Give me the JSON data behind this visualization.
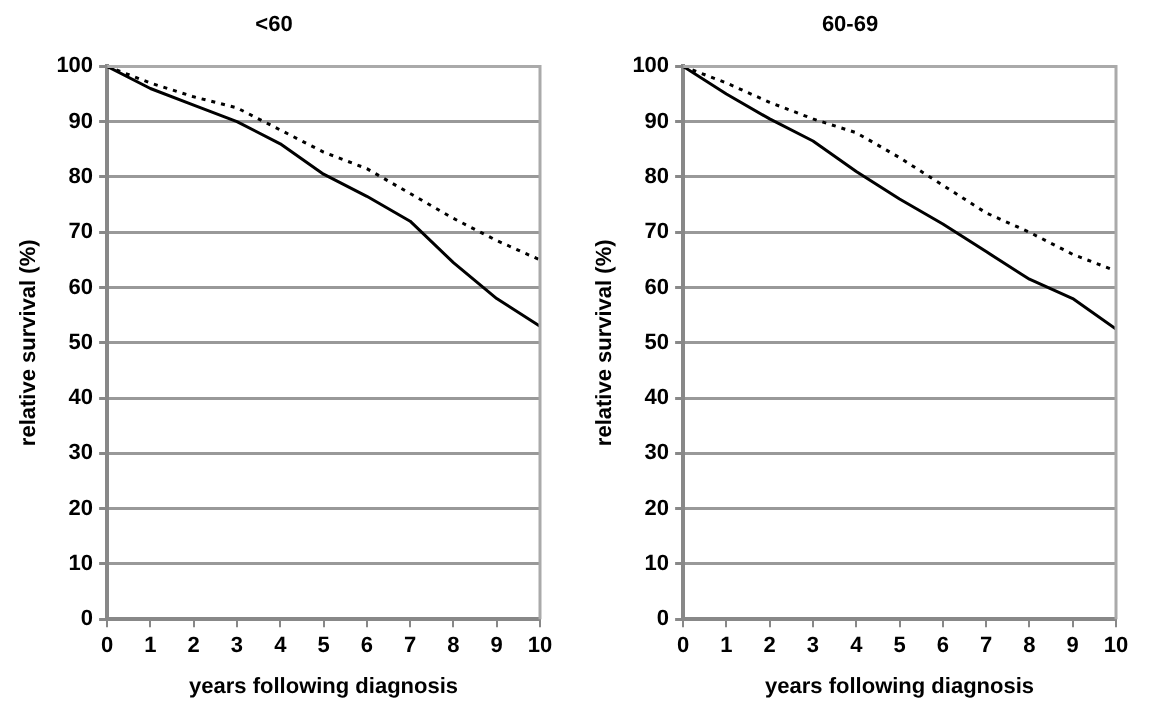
{
  "chart_data": [
    {
      "type": "line",
      "title": "<60",
      "xlabel": "years following diagnosis",
      "ylabel": "relative survival (%)",
      "x": [
        0,
        1,
        2,
        3,
        4,
        5,
        6,
        7,
        8,
        9,
        10
      ],
      "xlim": [
        0,
        10
      ],
      "xticks": [
        0,
        1,
        2,
        3,
        4,
        5,
        6,
        7,
        8,
        9,
        10
      ],
      "ylim": [
        0,
        100
      ],
      "yticks": [
        0,
        10,
        20,
        30,
        40,
        50,
        60,
        70,
        80,
        90,
        100
      ],
      "grid": "y",
      "legend": false,
      "marker": "none",
      "series": [
        {
          "color": "#000000",
          "line_style": "solid",
          "values": [
            100,
            96,
            93,
            90,
            86,
            80.5,
            76.5,
            72,
            64.5,
            58,
            53
          ]
        },
        {
          "color": "#000000",
          "line_style": "dotted",
          "values": [
            100,
            97,
            94.5,
            92.5,
            88.5,
            84.5,
            81.5,
            77,
            72.5,
            68.5,
            65
          ]
        }
      ]
    },
    {
      "type": "line",
      "title": "60-69",
      "xlabel": "years following diagnosis",
      "ylabel": "relative survival (%)",
      "x": [
        0,
        1,
        2,
        3,
        4,
        5,
        6,
        7,
        8,
        9,
        10
      ],
      "xlim": [
        0,
        10
      ],
      "xticks": [
        0,
        1,
        2,
        3,
        4,
        5,
        6,
        7,
        8,
        9,
        10
      ],
      "ylim": [
        0,
        100
      ],
      "yticks": [
        0,
        10,
        20,
        30,
        40,
        50,
        60,
        70,
        80,
        90,
        100
      ],
      "grid": "y",
      "legend": false,
      "marker": "none",
      "series": [
        {
          "color": "#000000",
          "line_style": "solid",
          "values": [
            100,
            95,
            90.5,
            86.5,
            81,
            76,
            71.5,
            66.5,
            61.5,
            58,
            52.5
          ]
        },
        {
          "color": "#000000",
          "line_style": "dotted",
          "values": [
            100,
            97,
            93.5,
            90.5,
            88,
            83.5,
            78.5,
            73.5,
            70,
            66,
            63
          ]
        }
      ]
    }
  ]
}
